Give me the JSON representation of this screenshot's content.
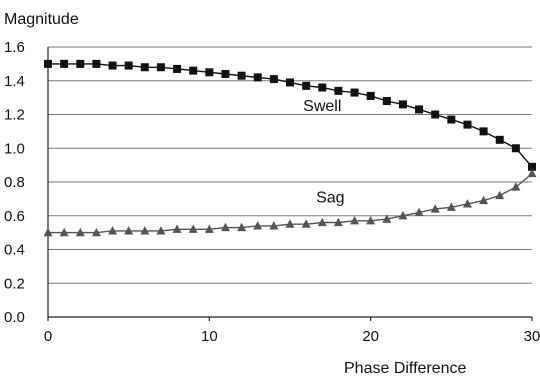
{
  "chart_data": {
    "type": "line",
    "xlabel": "Phase Difference",
    "ylabel": "Magnitude",
    "xlim": [
      0,
      30
    ],
    "ylim": [
      0,
      1.6
    ],
    "xticks": [
      0,
      10,
      20,
      30
    ],
    "yticks": [
      0.0,
      0.2,
      0.4,
      0.6,
      0.8,
      1.0,
      1.2,
      1.4,
      1.6
    ],
    "ytick_labels": [
      "0.0",
      "0.2",
      "0.4",
      "0.6",
      "0.8",
      "1.0",
      "1.2",
      "1.4",
      "1.6"
    ],
    "grid": true,
    "legend": "none",
    "series": [
      {
        "name": "Swell",
        "marker": "square",
        "color": "#111111",
        "x": [
          0,
          1,
          2,
          3,
          4,
          5,
          6,
          7,
          8,
          9,
          10,
          11,
          12,
          13,
          14,
          15,
          16,
          17,
          18,
          19,
          20,
          21,
          22,
          23,
          24,
          25,
          26,
          27,
          28,
          29,
          30
        ],
        "y": [
          1.5,
          1.5,
          1.5,
          1.5,
          1.49,
          1.49,
          1.48,
          1.48,
          1.47,
          1.46,
          1.45,
          1.44,
          1.43,
          1.42,
          1.41,
          1.39,
          1.37,
          1.36,
          1.34,
          1.33,
          1.31,
          1.28,
          1.26,
          1.23,
          1.2,
          1.17,
          1.14,
          1.1,
          1.05,
          1.0,
          0.89
        ]
      },
      {
        "name": "Sag",
        "marker": "triangle",
        "color": "#555555",
        "x": [
          0,
          1,
          2,
          3,
          4,
          5,
          6,
          7,
          8,
          9,
          10,
          11,
          12,
          13,
          14,
          15,
          16,
          17,
          18,
          19,
          20,
          21,
          22,
          23,
          24,
          25,
          26,
          27,
          28,
          29,
          30
        ],
        "y": [
          0.5,
          0.5,
          0.5,
          0.5,
          0.51,
          0.51,
          0.51,
          0.51,
          0.52,
          0.52,
          0.52,
          0.53,
          0.53,
          0.54,
          0.54,
          0.55,
          0.55,
          0.56,
          0.56,
          0.57,
          0.57,
          0.58,
          0.6,
          0.62,
          0.64,
          0.65,
          0.67,
          0.69,
          0.72,
          0.77,
          0.85
        ]
      }
    ],
    "annotations": [
      {
        "text": "Swell",
        "x": 17,
        "y": 1.22
      },
      {
        "text": "Sag",
        "x": 17.5,
        "y": 0.68
      }
    ]
  }
}
